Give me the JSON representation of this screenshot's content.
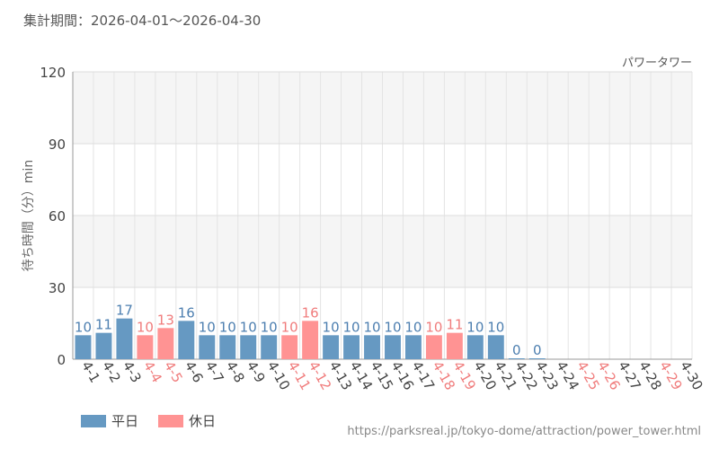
{
  "header": {
    "period": "集計期間：2026-04-01～2026-04-30"
  },
  "footer": {
    "url": "https://parksreal.jp/tokyo-dome/attraction/power_tower.html"
  },
  "colors": {
    "weekday": "#6699c2",
    "holiday": "#ff9393",
    "weekday_label": "#4d7fb0",
    "holiday_label": "#f07c7c"
  },
  "legend": {
    "weekday": "平日",
    "holiday": "休日"
  },
  "chart_data": {
    "type": "bar",
    "series_label": "パワータワー",
    "ylabel": "待ち時間（分）min",
    "xlabel": "",
    "ylim": [
      0,
      120
    ],
    "yticks": [
      0,
      30,
      60,
      90,
      120
    ],
    "grid": true,
    "categories": [
      "4-1",
      "4-2",
      "4-3",
      "4-4",
      "4-5",
      "4-6",
      "4-7",
      "4-8",
      "4-9",
      "4-10",
      "4-11",
      "4-12",
      "4-13",
      "4-14",
      "4-15",
      "4-16",
      "4-17",
      "4-18",
      "4-19",
      "4-20",
      "4-21",
      "4-22",
      "4-23",
      "4-24",
      "4-25",
      "4-26",
      "4-27",
      "4-28",
      "4-29",
      "4-30"
    ],
    "values": [
      10,
      11,
      17,
      10,
      13,
      16,
      10,
      10,
      10,
      10,
      10,
      16,
      10,
      10,
      10,
      10,
      10,
      10,
      11,
      10,
      10,
      0,
      0,
      null,
      null,
      null,
      null,
      null,
      null,
      null
    ],
    "day_type": [
      "weekday",
      "weekday",
      "weekday",
      "holiday",
      "holiday",
      "weekday",
      "weekday",
      "weekday",
      "weekday",
      "weekday",
      "holiday",
      "holiday",
      "weekday",
      "weekday",
      "weekday",
      "weekday",
      "weekday",
      "holiday",
      "holiday",
      "weekday",
      "weekday",
      "weekday",
      "weekday",
      "weekday",
      "holiday",
      "holiday",
      "weekday",
      "weekday",
      "holiday",
      "weekday"
    ]
  }
}
